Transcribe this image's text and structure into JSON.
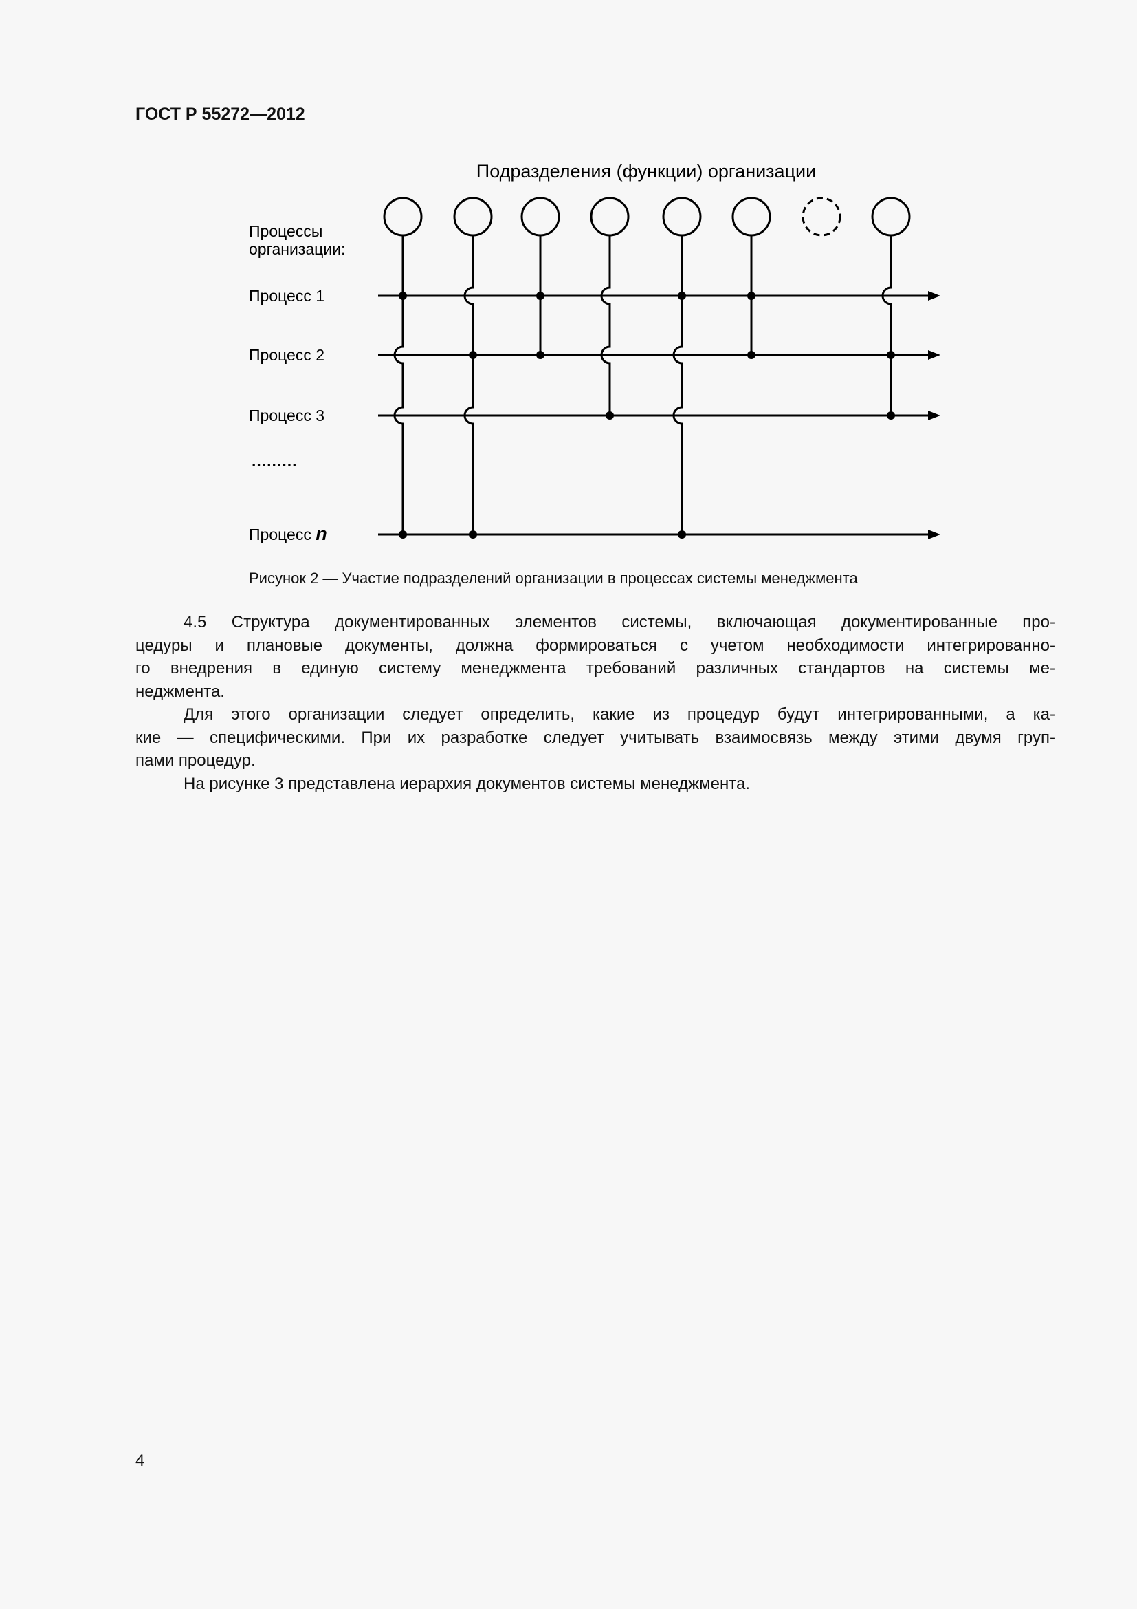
{
  "header": {
    "doc_code": "ГОСТ Р 55272—2012"
  },
  "figure": {
    "title": "Подразделения (функции) организации",
    "processes_heading": [
      "Процессы",
      "организации:"
    ],
    "process_labels": [
      "Процесс 1",
      "Процесс 2",
      "Процесс 3"
    ],
    "ellipsis": ".........",
    "last_process_label": "Процесс ",
    "last_process_symbol": "n",
    "units": [
      {
        "style": "solid",
        "links": [
          "dot",
          "hop",
          "hop",
          "dot"
        ]
      },
      {
        "style": "solid",
        "links": [
          "hop",
          "dot",
          "hop",
          "dot"
        ]
      },
      {
        "style": "solid",
        "links": [
          "dot",
          "dot",
          "none",
          "none"
        ]
      },
      {
        "style": "solid",
        "links": [
          "hop",
          "hop",
          "dot",
          "none"
        ]
      },
      {
        "style": "solid",
        "links": [
          "dot",
          "hop",
          "hop",
          "dot"
        ]
      },
      {
        "style": "solid",
        "links": [
          "dot",
          "dot",
          "none",
          "none"
        ]
      },
      {
        "style": "dashed",
        "links": [
          "none",
          "none",
          "none",
          "none"
        ]
      },
      {
        "style": "solid",
        "links": [
          "hop",
          "dot",
          "dot",
          "none"
        ]
      }
    ],
    "caption": "Рисунок 2 — Участие подразделений организации в процессах системы менеджмента"
  },
  "body": {
    "paragraphs": [
      {
        "lines": [
          "4.5 Структура документированных элементов системы, включающая документированные про-",
          "цедуры и плановые документы, должна формироваться с учетом необходимости интегрированно-",
          "го внедрения в единую систему менеджмента требований различных стандартов на системы ме-",
          "неджмента."
        ]
      },
      {
        "lines": [
          "Для этого организации следует определить, какие из процедур будут интегрированными, а ка-",
          "кие — специфическими. При их разработке следует учитывать взаимосвязь между этими двумя груп-",
          "пами процедур."
        ]
      },
      {
        "lines": [
          "На рисунке 3 представлена иерархия документов системы менеджмента."
        ]
      }
    ]
  },
  "footer": {
    "page_number": "4"
  }
}
